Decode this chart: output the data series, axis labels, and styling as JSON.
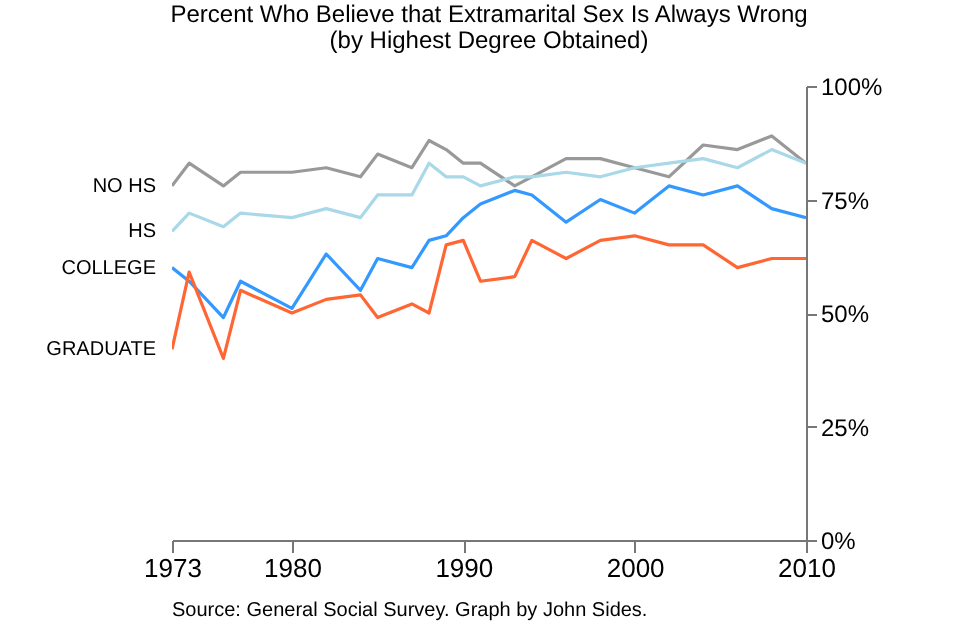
{
  "chart_data": {
    "type": "line",
    "title": "Percent Who Believe that Extramarital Sex Is Always Wrong",
    "subtitle": "(by Highest Degree Obtained)",
    "x": [
      1973,
      1974,
      1976,
      1977,
      1980,
      1982,
      1984,
      1985,
      1987,
      1988,
      1989,
      1990,
      1991,
      1993,
      1994,
      1996,
      1998,
      2000,
      2002,
      2004,
      2006,
      2008,
      2010
    ],
    "series": [
      {
        "name": "NO HS",
        "color": "#999999",
        "values": [
          78,
          83,
          78,
          81,
          81,
          82,
          80,
          85,
          82,
          88,
          86,
          83,
          83,
          78,
          80,
          84,
          84,
          82,
          80,
          87,
          86,
          89,
          83
        ]
      },
      {
        "name": "HS",
        "color": "#a9d8e8",
        "values": [
          68,
          72,
          69,
          72,
          71,
          73,
          71,
          76,
          76,
          83,
          80,
          80,
          78,
          80,
          80,
          81,
          80,
          82,
          83,
          84,
          82,
          86,
          83
        ]
      },
      {
        "name": "COLLEGE",
        "color": "#3399ff",
        "values": [
          60,
          57,
          49,
          57,
          51,
          63,
          55,
          62,
          60,
          66,
          67,
          71,
          74,
          77,
          76,
          70,
          75,
          72,
          78,
          76,
          78,
          73,
          71
        ]
      },
      {
        "name": "GRADUATE",
        "color": "#ff6633",
        "values": [
          42,
          59,
          40,
          55,
          50,
          53,
          54,
          49,
          52,
          50,
          65,
          66,
          57,
          58,
          66,
          62,
          66,
          67,
          65,
          65,
          60,
          62,
          62
        ]
      }
    ],
    "xlim": [
      1973,
      2010
    ],
    "xticks": [
      1973,
      1980,
      1990,
      2000,
      2010
    ],
    "ylim": [
      0,
      100
    ],
    "yticks": [
      {
        "value": 0,
        "label": "0%"
      },
      {
        "value": 25,
        "label": "25%"
      },
      {
        "value": 50,
        "label": "50%"
      },
      {
        "value": 75,
        "label": "75%"
      },
      {
        "value": 100,
        "label": "100%"
      }
    ],
    "annotations": [
      "Source: General Social Survey.  Graph by John Sides."
    ]
  }
}
